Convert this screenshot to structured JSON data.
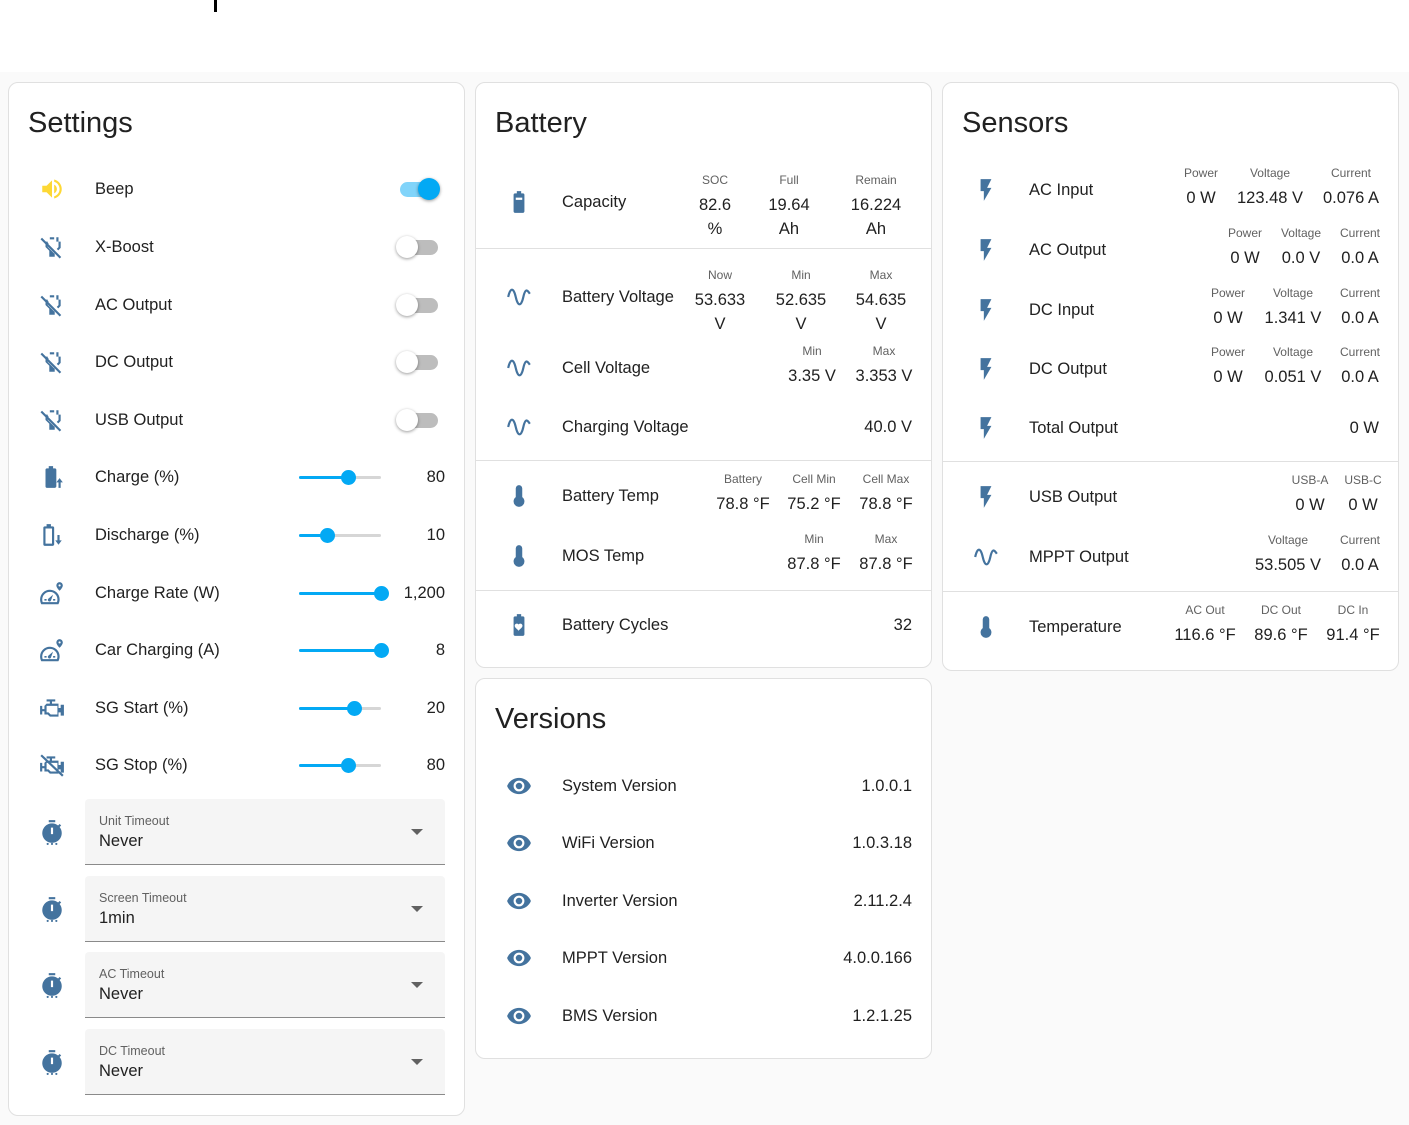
{
  "colors": {
    "icon": "#44739e",
    "accent": "#03a9f4",
    "beep_icon": "#fdd835"
  },
  "settings": {
    "title": "Settings",
    "toggles": [
      {
        "label": "Beep",
        "icon": "volume-icon",
        "on": true
      },
      {
        "label": "X-Boost",
        "icon": "power-plug-off-icon",
        "on": false
      },
      {
        "label": "AC Output",
        "icon": "power-plug-off-icon",
        "on": false
      },
      {
        "label": "DC Output",
        "icon": "power-plug-off-icon",
        "on": false
      },
      {
        "label": "USB Output",
        "icon": "power-plug-off-icon",
        "on": false
      }
    ],
    "sliders": [
      {
        "label": "Charge (%)",
        "icon": "battery-charging-icon",
        "value": "80",
        "fraction": 0.6
      },
      {
        "label": "Discharge (%)",
        "icon": "battery-arrow-down-icon",
        "value": "10",
        "fraction": 0.34
      },
      {
        "label": "Charge Rate (W)",
        "icon": "speedometer-icon",
        "value": "1,200",
        "fraction": 1.0
      },
      {
        "label": "Car Charging (A)",
        "icon": "speedometer-icon",
        "value": "8",
        "fraction": 1.0
      },
      {
        "label": "SG Start (%)",
        "icon": "engine-icon",
        "value": "20",
        "fraction": 0.67
      },
      {
        "label": "SG Stop (%)",
        "icon": "engine-off-icon",
        "value": "80",
        "fraction": 0.6
      }
    ],
    "selects": [
      {
        "label": "Unit Timeout",
        "value": "Never"
      },
      {
        "label": "Screen Timeout",
        "value": "1min"
      },
      {
        "label": "AC Timeout",
        "value": "Never"
      },
      {
        "label": "DC Timeout",
        "value": "Never"
      }
    ]
  },
  "battery": {
    "title": "Battery",
    "capacity": {
      "label": "Capacity",
      "soc_name": "SOC",
      "soc": "82.6",
      "soc_unit": "%",
      "full_name": "Full",
      "full": "19.64",
      "full_unit": "Ah",
      "remain_name": "Remain",
      "remain": "16.224",
      "remain_unit": "Ah"
    },
    "battery_voltage": {
      "label": "Battery Voltage",
      "now_name": "Now",
      "now": "53.633",
      "now_unit": "V",
      "min_name": "Min",
      "min": "52.635",
      "min_unit": "V",
      "max_name": "Max",
      "max": "54.635",
      "max_unit": "V"
    },
    "cell_voltage": {
      "label": "Cell Voltage",
      "min_name": "Min",
      "min": "3.35 V",
      "max_name": "Max",
      "max": "3.353 V"
    },
    "charging_voltage": {
      "label": "Charging Voltage",
      "value": "40.0 V"
    },
    "battery_temp": {
      "label": "Battery Temp",
      "battery_name": "Battery",
      "battery": "78.8 °F",
      "cell_min_name": "Cell Min",
      "cell_min": "75.2 °F",
      "cell_max_name": "Cell Max",
      "cell_max": "78.8 °F"
    },
    "mos_temp": {
      "label": "MOS Temp",
      "min_name": "Min",
      "min": "87.8 °F",
      "max_name": "Max",
      "max": "87.8 °F"
    },
    "cycles": {
      "label": "Battery Cycles",
      "value": "32"
    }
  },
  "versions": {
    "title": "Versions",
    "items": [
      {
        "label": "System Version",
        "value": "1.0.0.1"
      },
      {
        "label": "WiFi Version",
        "value": "1.0.3.18"
      },
      {
        "label": "Inverter Version",
        "value": "2.11.2.4"
      },
      {
        "label": "MPPT Version",
        "value": "4.0.0.166"
      },
      {
        "label": "BMS Version",
        "value": "1.2.1.25"
      }
    ]
  },
  "sensors": {
    "title": "Sensors",
    "ac_input": {
      "label": "AC Input",
      "power_name": "Power",
      "power": "0 W",
      "voltage_name": "Voltage",
      "voltage": "123.48 V",
      "current_name": "Current",
      "current": "0.076 A"
    },
    "ac_output": {
      "label": "AC Output",
      "power_name": "Power",
      "power": "0 W",
      "voltage_name": "Voltage",
      "voltage": "0.0 V",
      "current_name": "Current",
      "current": "0.0 A"
    },
    "dc_input": {
      "label": "DC Input",
      "power_name": "Power",
      "power": "0 W",
      "voltage_name": "Voltage",
      "voltage": "1.341 V",
      "current_name": "Current",
      "current": "0.0 A"
    },
    "dc_output": {
      "label": "DC Output",
      "power_name": "Power",
      "power": "0 W",
      "voltage_name": "Voltage",
      "voltage": "0.051 V",
      "current_name": "Current",
      "current": "0.0 A"
    },
    "total_output": {
      "label": "Total Output",
      "value": "0 W"
    },
    "usb_output": {
      "label": "USB Output",
      "usba_name": "USB-A",
      "usba": "0 W",
      "usbc_name": "USB-C",
      "usbc": "0 W"
    },
    "mppt_output": {
      "label": "MPPT Output",
      "voltage_name": "Voltage",
      "voltage": "53.505 V",
      "current_name": "Current",
      "current": "0.0 A"
    },
    "temperature": {
      "label": "Temperature",
      "ac_out_name": "AC Out",
      "ac_out": "116.6 °F",
      "dc_out_name": "DC Out",
      "dc_out": "89.6 °F",
      "dc_in_name": "DC In",
      "dc_in": "91.4 °F"
    }
  }
}
